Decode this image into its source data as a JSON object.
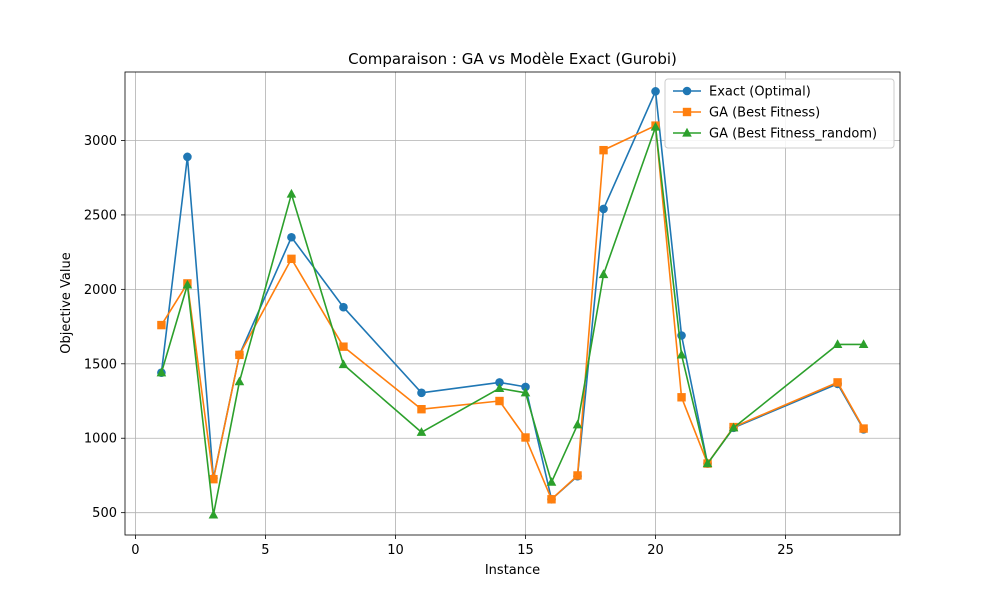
{
  "chart_data": {
    "type": "line",
    "title": "Comparaison : GA vs Modèle Exact (Gurobi)",
    "xlabel": "Instance",
    "ylabel": "Objective Value",
    "xlim": [
      -0.4,
      29.4
    ],
    "ylim": [
      350,
      3460
    ],
    "xticks": [
      0,
      5,
      10,
      15,
      20,
      25
    ],
    "yticks": [
      500,
      1000,
      1500,
      2000,
      2500,
      3000
    ],
    "grid": true,
    "legend_position": "top-right",
    "x": [
      1,
      2,
      3,
      4,
      6,
      8,
      11,
      14,
      15,
      16,
      17,
      18,
      20,
      21,
      22,
      23,
      27,
      28
    ],
    "series": [
      {
        "name": "Exact (Optimal)",
        "color": "#1f77b4",
        "marker": "circle",
        "values": [
          1440,
          2890,
          730,
          1560,
          2350,
          1880,
          1305,
          1375,
          1345,
          590,
          745,
          2540,
          3330,
          1690,
          830,
          1070,
          1365,
          1060
        ]
      },
      {
        "name": "GA (Best Fitness)",
        "color": "#ff7f0e",
        "marker": "square",
        "values": [
          1760,
          2040,
          725,
          1560,
          2205,
          1615,
          1195,
          1250,
          1005,
          590,
          750,
          2935,
          3100,
          1275,
          830,
          1075,
          1375,
          1065
        ]
      },
      {
        "name": "GA (Best Fitness_random)",
        "color": "#2ca02c",
        "marker": "triangle",
        "values": [
          1440,
          2030,
          485,
          1380,
          2640,
          1495,
          1040,
          1335,
          1305,
          705,
          1090,
          2100,
          3090,
          1560,
          830,
          1070,
          1630,
          1630
        ]
      }
    ]
  }
}
